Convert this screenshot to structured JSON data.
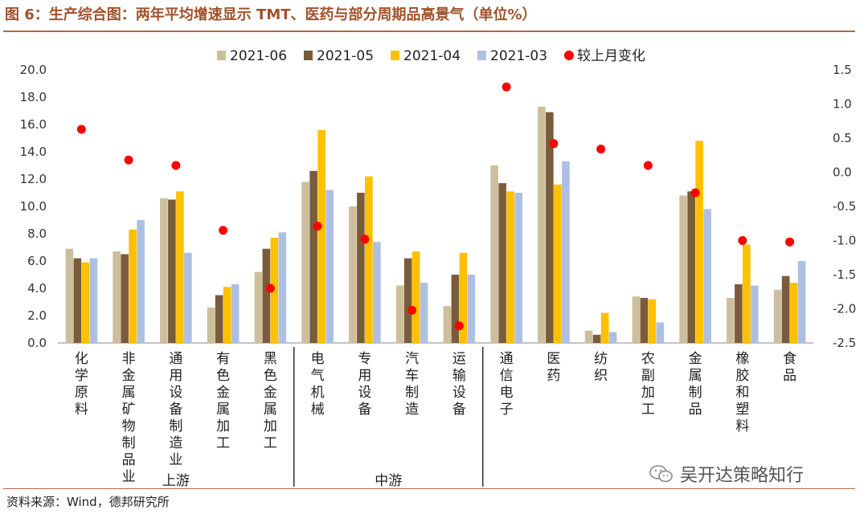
{
  "figure": {
    "title": "图 6：生产综合图：两年平均增速显示 TMT、医药与部分周期品高景气（单位%）",
    "source": "资料来源：Wind，德邦研究所",
    "watermark": "吴开达策略知行"
  },
  "colors": {
    "title": "#a0522d",
    "rule": "#b06a3a",
    "s_2021_06": "#cdbf9d",
    "s_2021_05": "#7a5c3a",
    "s_2021_04": "#ffc000",
    "s_2021_03": "#adc0e3",
    "change": "#ff0000"
  },
  "chart_data": {
    "type": "bar",
    "title": "",
    "xlabel": "",
    "ylabel": "",
    "categories": [
      "化学原料",
      "非金属矿物制品业",
      "通用设备制造业",
      "有色金属加工",
      "黑色金属加工",
      "电气机械",
      "专用设备",
      "汽车制造",
      "运输设备",
      "通信电子",
      "医药",
      "纺织",
      "农副加工",
      "金属制品",
      "橡胶和塑料",
      "食品"
    ],
    "series": [
      {
        "name": "2021-06",
        "axis": "left",
        "values": [
          6.9,
          6.7,
          10.6,
          2.6,
          5.2,
          11.8,
          10.0,
          4.2,
          2.7,
          13.0,
          17.3,
          0.9,
          3.4,
          10.8,
          3.3,
          3.9
        ]
      },
      {
        "name": "2021-05",
        "axis": "left",
        "values": [
          6.2,
          6.5,
          10.5,
          3.5,
          6.9,
          12.6,
          11.0,
          6.2,
          5.0,
          11.7,
          16.9,
          0.6,
          3.3,
          11.1,
          4.3,
          4.9
        ]
      },
      {
        "name": "2021-04",
        "axis": "left",
        "values": [
          5.9,
          8.3,
          11.1,
          4.1,
          7.7,
          15.6,
          12.2,
          6.7,
          6.6,
          11.1,
          11.6,
          2.2,
          3.2,
          14.8,
          7.2,
          4.4
        ]
      },
      {
        "name": "2021-03",
        "axis": "left",
        "values": [
          6.2,
          9.0,
          6.6,
          4.3,
          8.1,
          11.2,
          7.4,
          4.4,
          5.0,
          11.0,
          13.3,
          0.8,
          1.5,
          9.8,
          4.2,
          6.0
        ]
      },
      {
        "name": "较上月变化",
        "axis": "right",
        "type": "scatter",
        "values": [
          0.63,
          0.18,
          0.1,
          -0.85,
          -1.7,
          -0.79,
          -0.98,
          -2.02,
          -2.25,
          1.25,
          0.42,
          0.34,
          0.1,
          -0.3,
          -1.0,
          -1.02
        ]
      }
    ],
    "ylim": [
      0,
      20
    ],
    "y_ticks": [
      "0.0",
      "2.0",
      "4.0",
      "6.0",
      "8.0",
      "10.0",
      "12.0",
      "14.0",
      "16.0",
      "18.0",
      "20.0"
    ],
    "y2lim": [
      -2.5,
      1.5
    ],
    "y2_ticks": [
      "1.5",
      "1.0",
      "0.5",
      "0.0",
      "-0.5",
      "-1.0",
      "-1.5",
      "-2.0",
      "-2.5"
    ],
    "groups": [
      {
        "label": "上游",
        "from": 0,
        "to": 4
      },
      {
        "label": "中游",
        "from": 5,
        "to": 8
      }
    ],
    "legend_position": "top",
    "grid": false
  }
}
